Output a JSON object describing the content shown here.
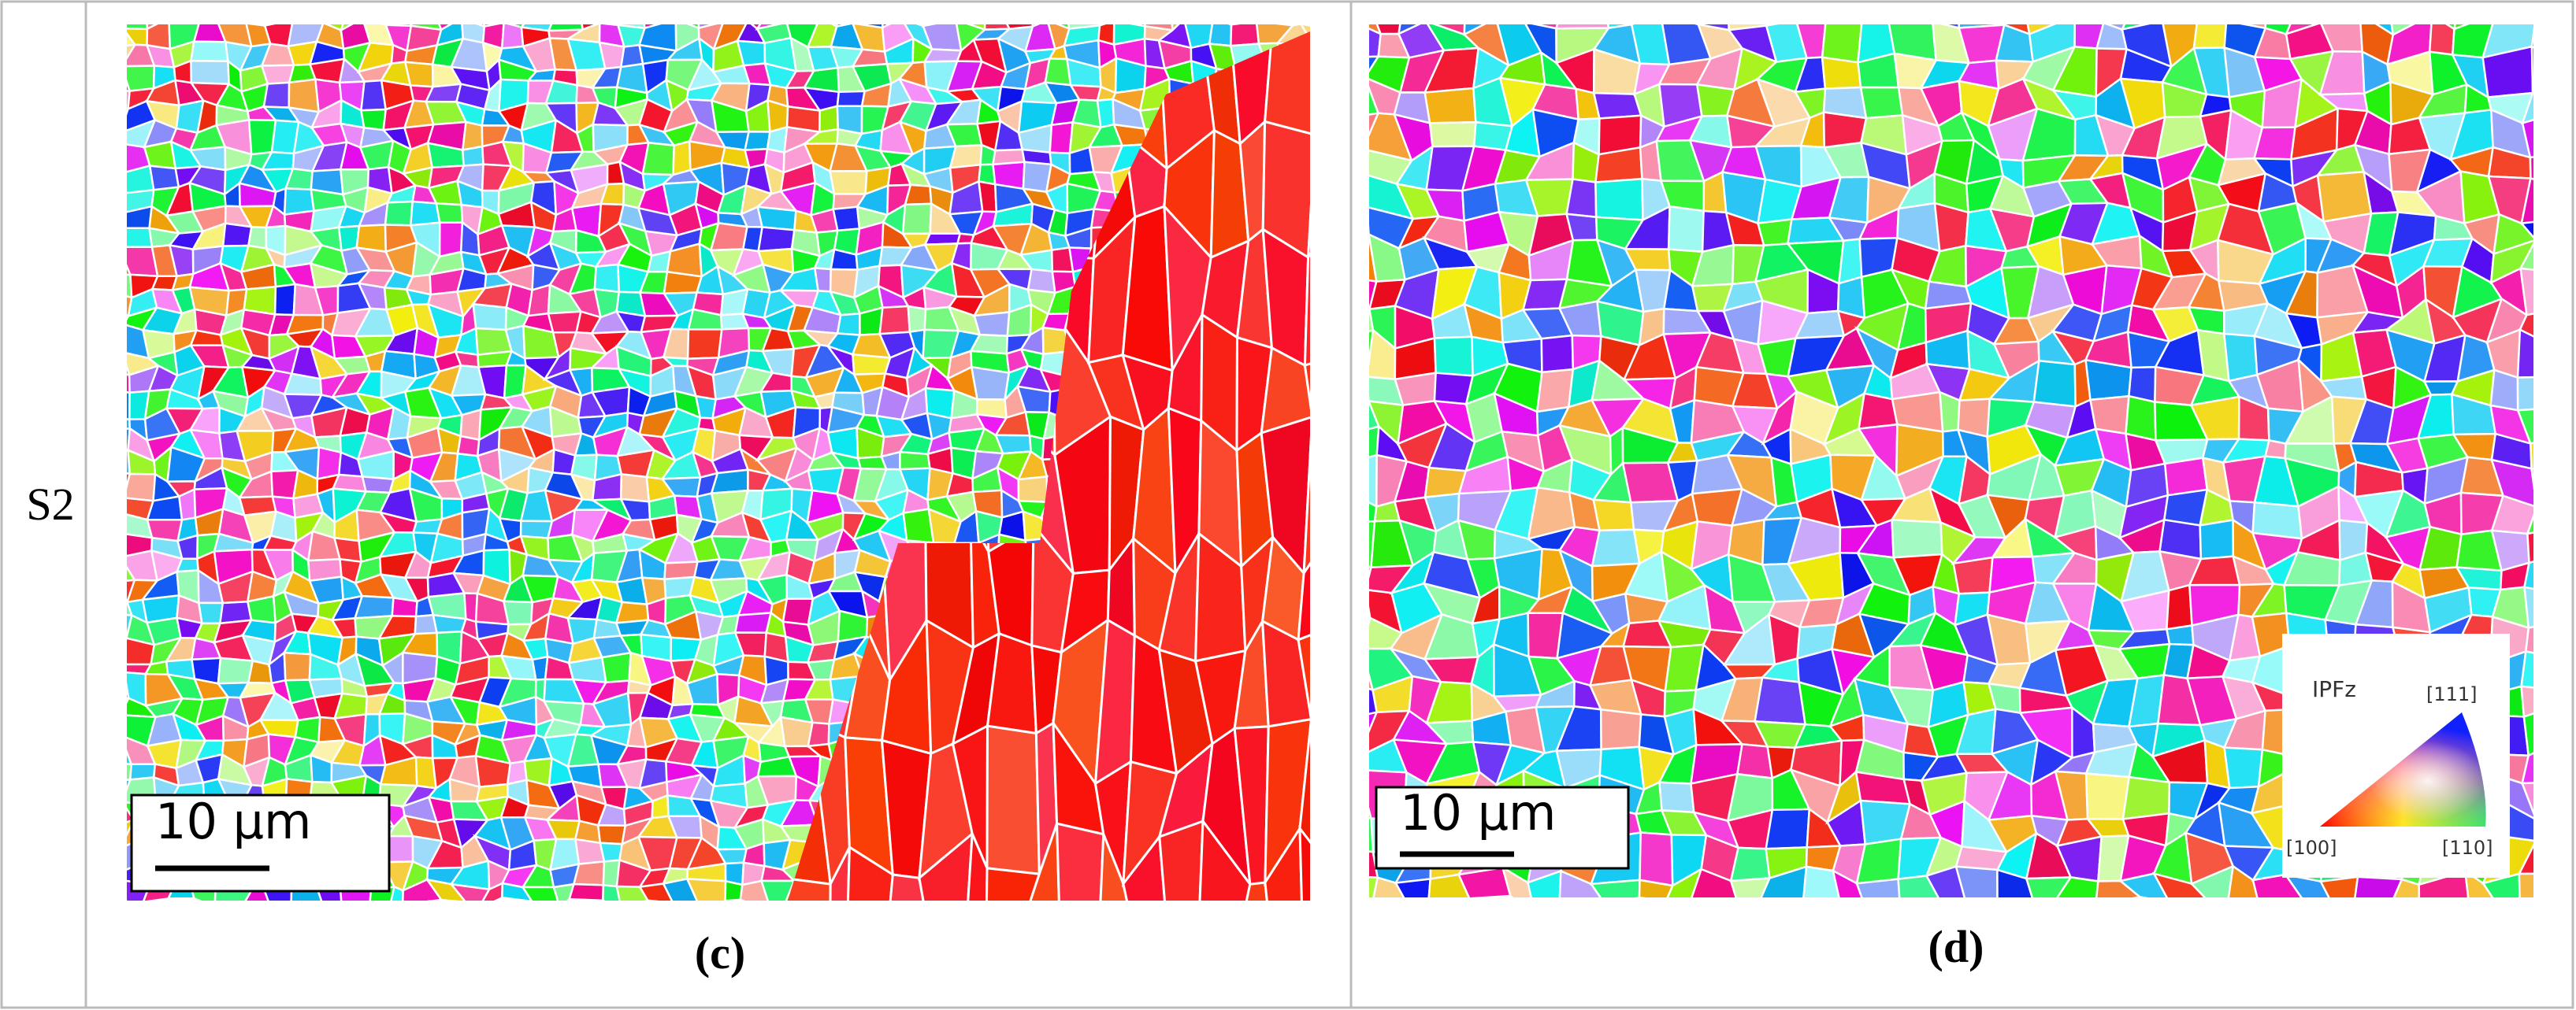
{
  "row_label": "S2",
  "panels": [
    {
      "caption": "(c)",
      "scale_bar": "10 µm"
    },
    {
      "caption": "(d)",
      "scale_bar": "10 µm",
      "legend": {
        "title": "IPFz",
        "top": "[111]",
        "left": "[100]",
        "right": "[110]"
      }
    }
  ]
}
